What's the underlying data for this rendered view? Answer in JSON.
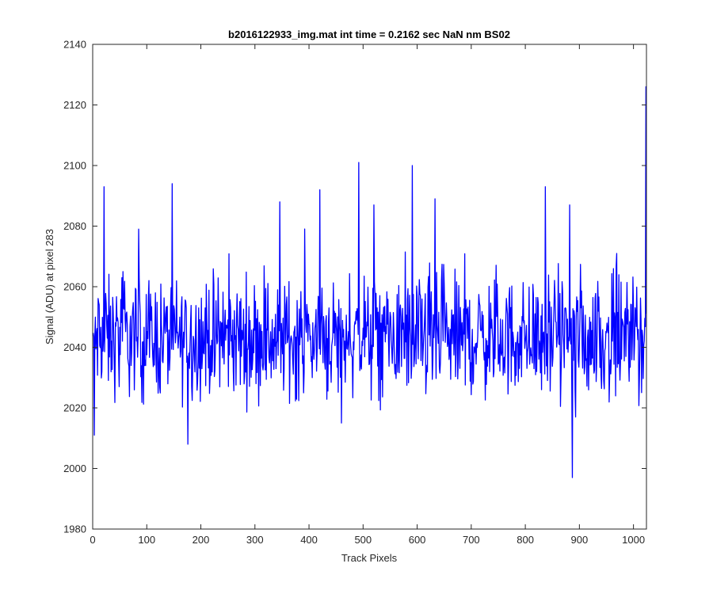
{
  "chart_data": {
    "type": "line",
    "title": "b2016122933_img.mat int time = 0.2162 sec  NaN nm BS02",
    "xlabel": "Track Pixels",
    "ylabel": "Signal (ADU) at pixel 283",
    "xlim": [
      0,
      1024
    ],
    "ylim": [
      1980,
      2140
    ],
    "xticks": [
      0,
      100,
      200,
      300,
      400,
      500,
      600,
      700,
      800,
      900,
      1000
    ],
    "yticks": [
      1980,
      2000,
      2020,
      2040,
      2060,
      2080,
      2100,
      2120,
      2140
    ],
    "grid": false,
    "legend": "none",
    "series": [
      {
        "color": "#0000ff",
        "x_start": 1,
        "x_step": 1,
        "points_count": 1024,
        "mean": 2043,
        "noise_amplitude": 14,
        "min_point": [
          887,
          1997
        ],
        "max_point": [
          1023,
          2126
        ],
        "notable_peaks": [
          [
            3,
            2011
          ],
          [
            21,
            2093
          ],
          [
            85,
            2079
          ],
          [
            176,
            2008
          ],
          [
            346,
            2088
          ],
          [
            420,
            2092
          ],
          [
            460,
            2015
          ],
          [
            492,
            2101
          ],
          [
            520,
            2087
          ],
          [
            591,
            2100
          ],
          [
            633,
            2089
          ],
          [
            837,
            2093
          ],
          [
            882,
            2087
          ],
          [
            887,
            1997
          ],
          [
            893,
            2017
          ],
          [
            1023,
            2126
          ]
        ]
      }
    ]
  }
}
